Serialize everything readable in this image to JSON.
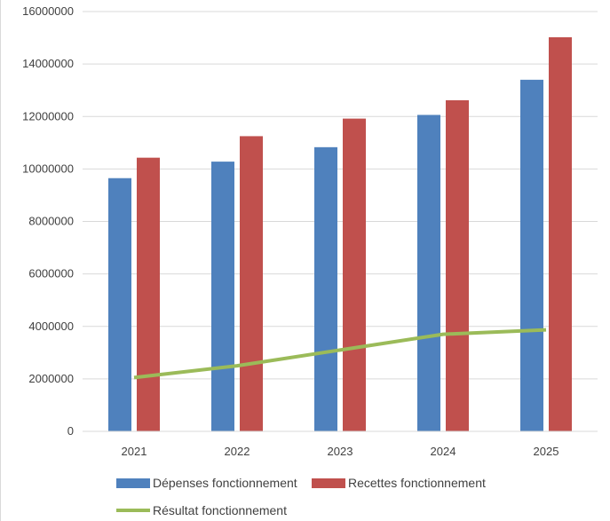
{
  "chart_data": {
    "type": "bar",
    "categories": [
      "2021",
      "2022",
      "2023",
      "2024",
      "2025"
    ],
    "series": [
      {
        "name": "Dépenses fonctionnement",
        "kind": "bar",
        "color": "#4f81bd",
        "values": [
          9650000,
          10280000,
          10830000,
          12060000,
          13400000
        ]
      },
      {
        "name": "Recettes fonctionnement",
        "kind": "bar",
        "color": "#c0504d",
        "values": [
          10430000,
          11250000,
          11920000,
          12620000,
          15020000
        ]
      },
      {
        "name": "Résultat fonctionnement",
        "kind": "line",
        "color": "#9bbb59",
        "values": [
          2050000,
          2500000,
          3100000,
          3700000,
          3870000
        ]
      }
    ],
    "y_ticks": [
      "0",
      "2000000",
      "4000000",
      "6000000",
      "8000000",
      "10000000",
      "12000000",
      "14000000",
      "16000000"
    ],
    "ylim": [
      0,
      16000000
    ],
    "grid": true,
    "legend_position": "bottom"
  }
}
